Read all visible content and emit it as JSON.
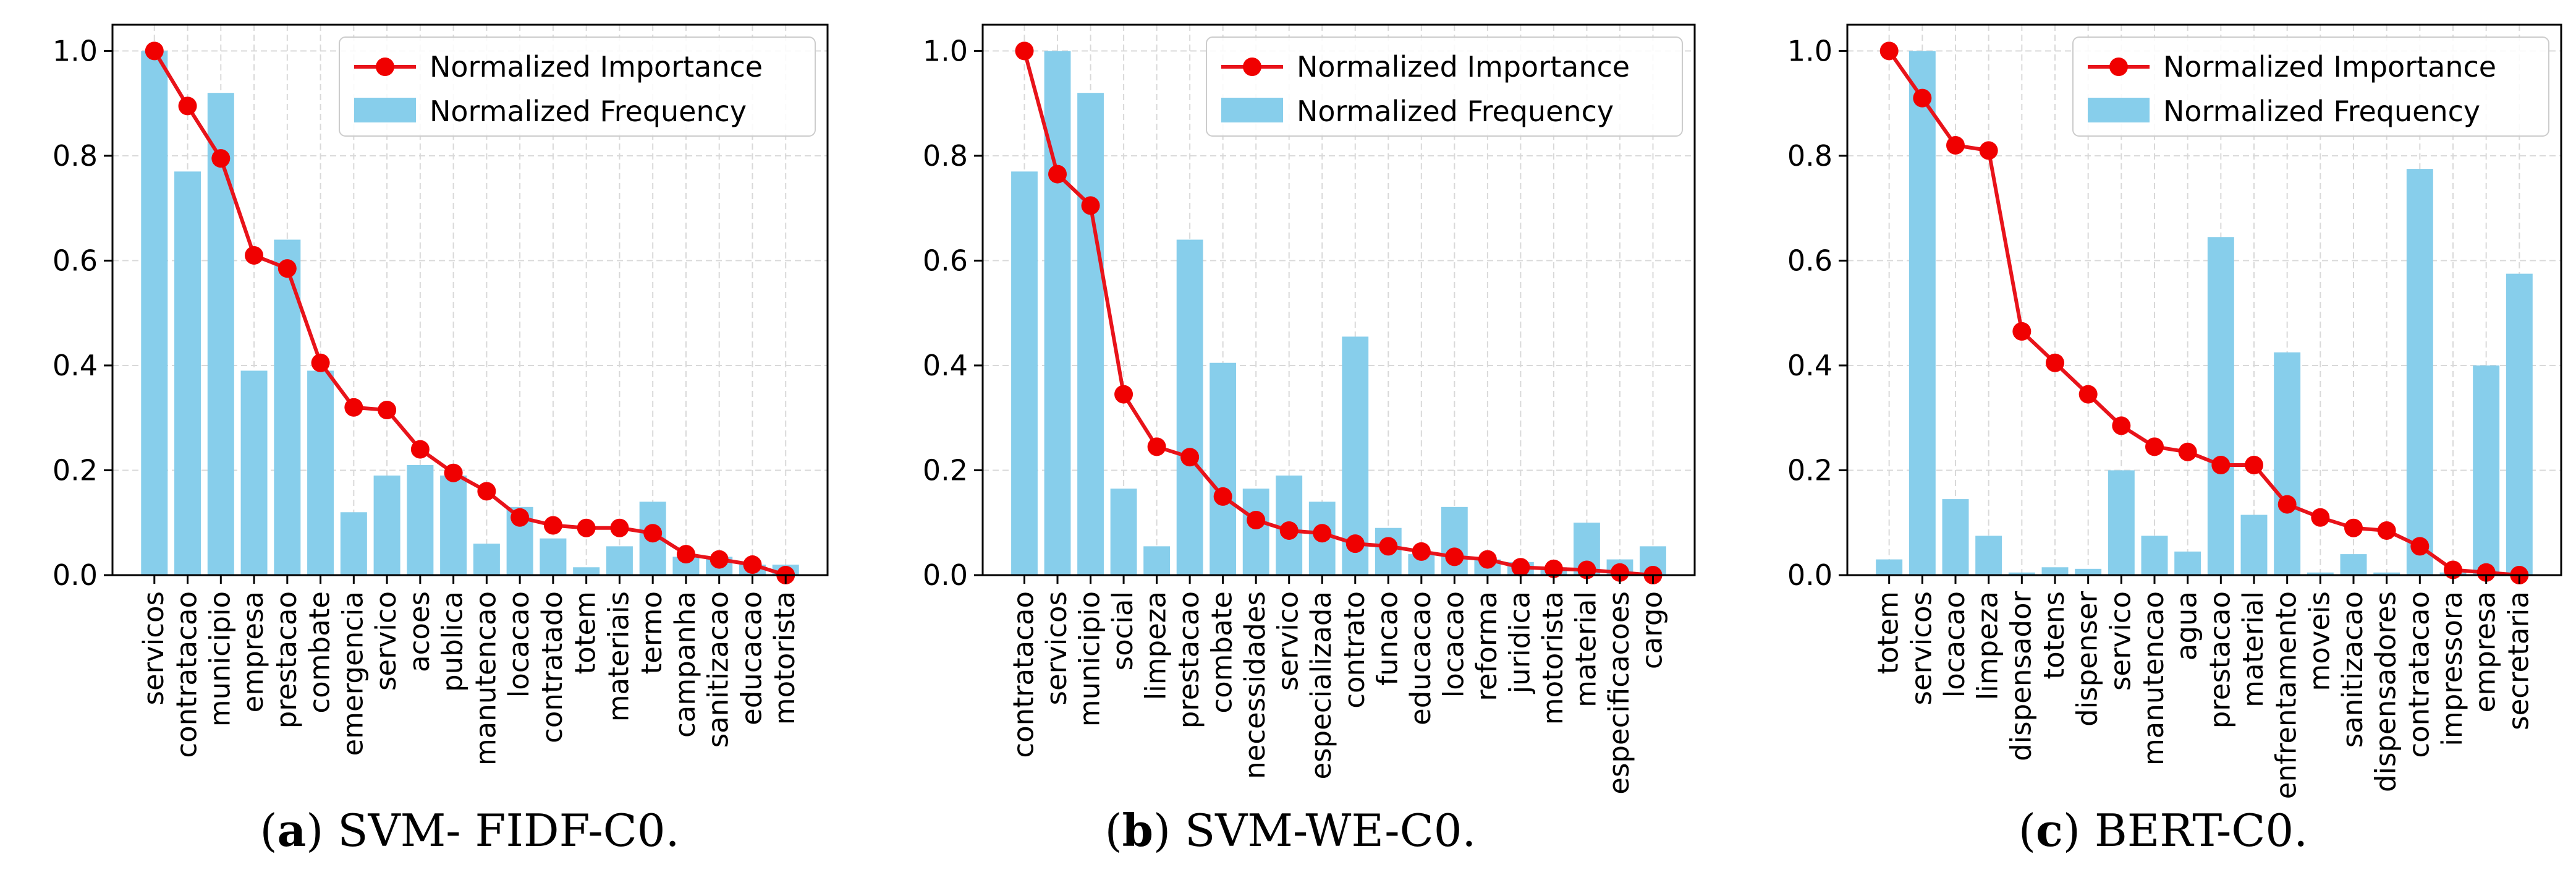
{
  "colors": {
    "bar": "#87ceeb",
    "line": "#e8131a",
    "marker": "#f00000",
    "grid": "#d9d9d9",
    "axis": "#000000"
  },
  "legend": {
    "importance": "Normalized Importance",
    "frequency": "Normalized Frequency"
  },
  "chart_data": [
    {
      "type": "bar",
      "caption_label": "(a)",
      "caption_letter": "a",
      "caption_text": "SVM- FIDF-C0.",
      "ylim": [
        0,
        1.05
      ],
      "yticks": [
        0.0,
        0.2,
        0.4,
        0.6,
        0.8,
        1.0
      ],
      "ytick_labels": [
        "0.0",
        "0.2",
        "0.4",
        "0.6",
        "0.8",
        "1.0"
      ],
      "grid": true,
      "legend_position": "top-right",
      "categories": [
        "servicos",
        "contratacao",
        "municipio",
        "empresa",
        "prestacao",
        "combate",
        "emergencia",
        "servico",
        "acoes",
        "publica",
        "manutencao",
        "locacao",
        "contratado",
        "totem",
        "materiais",
        "termo",
        "campanha",
        "sanitizacao",
        "educacao",
        "motorista"
      ],
      "series": [
        {
          "name": "Normalized Frequency",
          "kind": "bar",
          "values": [
            1.0,
            0.77,
            0.92,
            0.39,
            0.64,
            0.39,
            0.12,
            0.19,
            0.21,
            0.19,
            0.06,
            0.13,
            0.07,
            0.015,
            0.055,
            0.14,
            0.035,
            0.035,
            0.02,
            0.02
          ]
        },
        {
          "name": "Normalized Importance",
          "kind": "line",
          "values": [
            1.0,
            0.895,
            0.795,
            0.61,
            0.585,
            0.405,
            0.32,
            0.315,
            0.24,
            0.195,
            0.16,
            0.11,
            0.095,
            0.09,
            0.09,
            0.08,
            0.04,
            0.03,
            0.02,
            0.0
          ]
        }
      ]
    },
    {
      "type": "bar",
      "caption_label": "(b)",
      "caption_letter": "b",
      "caption_text": "SVM-WE-C0.",
      "ylim": [
        0,
        1.05
      ],
      "yticks": [
        0.0,
        0.2,
        0.4,
        0.6,
        0.8,
        1.0
      ],
      "ytick_labels": [
        "0.0",
        "0.2",
        "0.4",
        "0.6",
        "0.8",
        "1.0"
      ],
      "grid": true,
      "legend_position": "top-right",
      "categories": [
        "contratacao",
        "servicos",
        "municipio",
        "social",
        "limpeza",
        "prestacao",
        "combate",
        "necessidades",
        "servico",
        "especializada",
        "contrato",
        "funcao",
        "educacao",
        "locacao",
        "reforma",
        "juridica",
        "motorista",
        "material",
        "especificacoes",
        "cargo"
      ],
      "series": [
        {
          "name": "Normalized Frequency",
          "kind": "bar",
          "values": [
            0.77,
            1.0,
            0.92,
            0.165,
            0.055,
            0.64,
            0.405,
            0.165,
            0.19,
            0.14,
            0.455,
            0.09,
            0.04,
            0.13,
            0.03,
            0.025,
            0.015,
            0.1,
            0.03,
            0.055
          ]
        },
        {
          "name": "Normalized Importance",
          "kind": "line",
          "values": [
            1.0,
            0.765,
            0.705,
            0.345,
            0.245,
            0.225,
            0.15,
            0.105,
            0.085,
            0.08,
            0.06,
            0.055,
            0.045,
            0.035,
            0.03,
            0.015,
            0.012,
            0.01,
            0.005,
            0.0
          ]
        }
      ]
    },
    {
      "type": "bar",
      "caption_label": "(c)",
      "caption_letter": "c",
      "caption_text": "BERT-C0.",
      "ylim": [
        0,
        1.05
      ],
      "yticks": [
        0.0,
        0.2,
        0.4,
        0.6,
        0.8,
        1.0
      ],
      "ytick_labels": [
        "0.0",
        "0.2",
        "0.4",
        "0.6",
        "0.8",
        "1.0"
      ],
      "grid": true,
      "legend_position": "top-right",
      "categories": [
        "totem",
        "servicos",
        "locacao",
        "limpeza",
        "dispensador",
        "totens",
        "dispenser",
        "servico",
        "manutencao",
        "agua",
        "prestacao",
        "material",
        "enfrentamento",
        "moveis",
        "sanitizacao",
        "dispensadores",
        "contratacao",
        "impressora",
        "empresa",
        "secretaria"
      ],
      "series": [
        {
          "name": "Normalized Frequency",
          "kind": "bar",
          "values": [
            0.03,
            1.0,
            0.145,
            0.075,
            0.005,
            0.015,
            0.012,
            0.2,
            0.075,
            0.045,
            0.645,
            0.115,
            0.425,
            0.005,
            0.04,
            0.005,
            0.775,
            0.005,
            0.4,
            0.575
          ]
        },
        {
          "name": "Normalized Importance",
          "kind": "line",
          "values": [
            1.0,
            0.91,
            0.82,
            0.81,
            0.465,
            0.405,
            0.345,
            0.285,
            0.245,
            0.235,
            0.21,
            0.21,
            0.135,
            0.11,
            0.09,
            0.085,
            0.055,
            0.01,
            0.005,
            0.0
          ]
        }
      ]
    }
  ]
}
